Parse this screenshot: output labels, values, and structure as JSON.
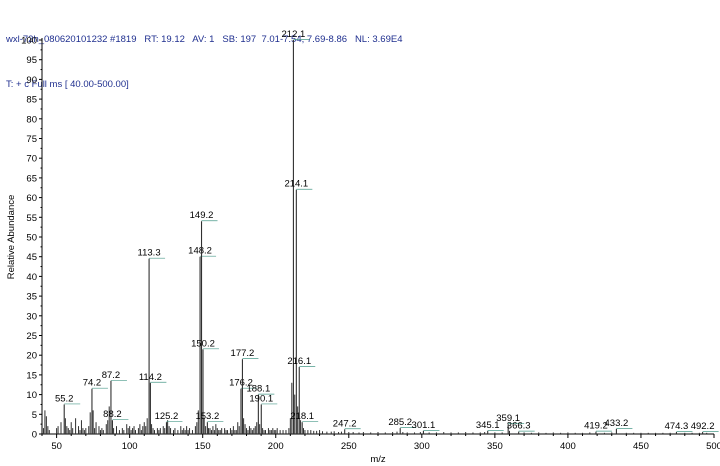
{
  "header": {
    "line1": "wxl-72h_080620101232 #1819   RT: 19.12   AV: 1   SB: 197  7.01-7.54, 7.69-8.86   NL: 3.69E4",
    "line2": "T: + c Full ms [ 40.00-500.00]"
  },
  "colors": {
    "axis": "#000000",
    "stick": "#303030",
    "label_leader": "#4a9a8a",
    "header_text": "#1f2f8f"
  },
  "chart_data": {
    "type": "bar",
    "xlabel": "m/z",
    "ylabel": "Relative Abundance",
    "xlim": [
      40,
      500
    ],
    "ylim": [
      0,
      100
    ],
    "xticks": [
      50,
      100,
      150,
      200,
      250,
      300,
      350,
      400,
      450,
      500
    ],
    "yticks": [
      0,
      5,
      10,
      15,
      20,
      25,
      30,
      35,
      40,
      45,
      50,
      55,
      60,
      65,
      70,
      75,
      80,
      85,
      90,
      95,
      100
    ],
    "labeled_peaks": [
      {
        "label": "55.2",
        "x": 55.2,
        "y": 7.5
      },
      {
        "label": "74.2",
        "x": 74.2,
        "y": 11.5
      },
      {
        "label": "87.2",
        "x": 87.2,
        "y": 13.5
      },
      {
        "label": "88.2",
        "x": 88.2,
        "y": 3.5
      },
      {
        "label": "113.3",
        "x": 113.3,
        "y": 44.5
      },
      {
        "label": "114.2",
        "x": 114.2,
        "y": 13
      },
      {
        "label": "125.2",
        "x": 125.2,
        "y": 3
      },
      {
        "label": "148.2",
        "x": 148.2,
        "y": 45
      },
      {
        "label": "149.2",
        "x": 149.2,
        "y": 54
      },
      {
        "label": "150.2",
        "x": 150.2,
        "y": 21.5
      },
      {
        "label": "153.2",
        "x": 153.2,
        "y": 3
      },
      {
        "label": "176.2",
        "x": 176.2,
        "y": 11.5
      },
      {
        "label": "177.2",
        "x": 177.2,
        "y": 19
      },
      {
        "label": "188.1",
        "x": 188.1,
        "y": 10
      },
      {
        "label": "190.1",
        "x": 190.1,
        "y": 7.5
      },
      {
        "label": "212.1",
        "x": 212.1,
        "y": 100
      },
      {
        "label": "214.1",
        "x": 214.1,
        "y": 62
      },
      {
        "label": "216.1",
        "x": 216.1,
        "y": 17
      },
      {
        "label": "218.1",
        "x": 218.1,
        "y": 3
      },
      {
        "label": "247.2",
        "x": 247.2,
        "y": 1.2
      },
      {
        "label": "285.2",
        "x": 285.2,
        "y": 1.5
      },
      {
        "label": "301.1",
        "x": 301.1,
        "y": 0.8
      },
      {
        "label": "345.1",
        "x": 345.1,
        "y": 0.8
      },
      {
        "label": "359.1",
        "x": 359.1,
        "y": 2.5
      },
      {
        "label": "366.3",
        "x": 366.3,
        "y": 0.6
      },
      {
        "label": "419.2",
        "x": 419.2,
        "y": 0.6
      },
      {
        "label": "433.2",
        "x": 433.2,
        "y": 1.3
      },
      {
        "label": "474.3",
        "x": 474.3,
        "y": 0.5
      },
      {
        "label": "492.2",
        "x": 492.2,
        "y": 0.5
      }
    ],
    "minor_peaks": [
      [
        41,
        1.5
      ],
      [
        42,
        6
      ],
      [
        43,
        4.5
      ],
      [
        44,
        2
      ],
      [
        45,
        1
      ],
      [
        50,
        1.5
      ],
      [
        51,
        2
      ],
      [
        53,
        3
      ],
      [
        56,
        4
      ],
      [
        57,
        2
      ],
      [
        58,
        1.5
      ],
      [
        59,
        1
      ],
      [
        60,
        3
      ],
      [
        61,
        1.5
      ],
      [
        63,
        4
      ],
      [
        65,
        2
      ],
      [
        66,
        1
      ],
      [
        67,
        3.5
      ],
      [
        68,
        1.5
      ],
      [
        69,
        1
      ],
      [
        70,
        1.5
      ],
      [
        72,
        2
      ],
      [
        73,
        5.5
      ],
      [
        75,
        6
      ],
      [
        76,
        1.5
      ],
      [
        77,
        3
      ],
      [
        79,
        2
      ],
      [
        80,
        1
      ],
      [
        81,
        1.5
      ],
      [
        82,
        1
      ],
      [
        84,
        2.5
      ],
      [
        85,
        3.5
      ],
      [
        86,
        7
      ],
      [
        89,
        1.5
      ],
      [
        91,
        2
      ],
      [
        93,
        1
      ],
      [
        95,
        1.5
      ],
      [
        96,
        1
      ],
      [
        98,
        2.5
      ],
      [
        99,
        1.5
      ],
      [
        100,
        2
      ],
      [
        101,
        1
      ],
      [
        102,
        1.5
      ],
      [
        103,
        2
      ],
      [
        104,
        1
      ],
      [
        106,
        1.5
      ],
      [
        107,
        2.5
      ],
      [
        108,
        1
      ],
      [
        109,
        2
      ],
      [
        110,
        3
      ],
      [
        111,
        2
      ],
      [
        112,
        4
      ],
      [
        115,
        2.5
      ],
      [
        116,
        1.5
      ],
      [
        117,
        1
      ],
      [
        119,
        1.5
      ],
      [
        120,
        1
      ],
      [
        121,
        1.5
      ],
      [
        123,
        2
      ],
      [
        124,
        1.5
      ],
      [
        126,
        3.5
      ],
      [
        127,
        2
      ],
      [
        128,
        1.5
      ],
      [
        130,
        1
      ],
      [
        131,
        1.5
      ],
      [
        133,
        1
      ],
      [
        135,
        2
      ],
      [
        136,
        1
      ],
      [
        137,
        1.5
      ],
      [
        138,
        1
      ],
      [
        139,
        2
      ],
      [
        140,
        1
      ],
      [
        141,
        1.5
      ],
      [
        143,
        1
      ],
      [
        145,
        2
      ],
      [
        146,
        3
      ],
      [
        147,
        6
      ],
      [
        151,
        4
      ],
      [
        152,
        2
      ],
      [
        154,
        1.5
      ],
      [
        155,
        1.5
      ],
      [
        156,
        1
      ],
      [
        157,
        2
      ],
      [
        158,
        1
      ],
      [
        159,
        2.5
      ],
      [
        160,
        1.5
      ],
      [
        161,
        1
      ],
      [
        162,
        1
      ],
      [
        163,
        1.5
      ],
      [
        165,
        1.5
      ],
      [
        166,
        1
      ],
      [
        167,
        1
      ],
      [
        169,
        1.5
      ],
      [
        170,
        1
      ],
      [
        171,
        2
      ],
      [
        172,
        1
      ],
      [
        173,
        1
      ],
      [
        174,
        3
      ],
      [
        175,
        2
      ],
      [
        178,
        4
      ],
      [
        179,
        2.5
      ],
      [
        180,
        1.5
      ],
      [
        181,
        1
      ],
      [
        182,
        2
      ],
      [
        183,
        1.5
      ],
      [
        184,
        1
      ],
      [
        185,
        1.5
      ],
      [
        186,
        2
      ],
      [
        187,
        3
      ],
      [
        189,
        2.5
      ],
      [
        191,
        1.5
      ],
      [
        192,
        1
      ],
      [
        193,
        1
      ],
      [
        195,
        1.5
      ],
      [
        196,
        1
      ],
      [
        197,
        1
      ],
      [
        198,
        1.5
      ],
      [
        199,
        1
      ],
      [
        200,
        1
      ],
      [
        201,
        1.5
      ],
      [
        203,
        1
      ],
      [
        205,
        1
      ],
      [
        207,
        1
      ],
      [
        209,
        1.5
      ],
      [
        210,
        4
      ],
      [
        211,
        13
      ],
      [
        213,
        10
      ],
      [
        215,
        7
      ],
      [
        217,
        3.5
      ],
      [
        219,
        1.5
      ],
      [
        220,
        1
      ],
      [
        222,
        1
      ],
      [
        224,
        1
      ],
      [
        226,
        0.8
      ],
      [
        228,
        0.8
      ],
      [
        230,
        1
      ],
      [
        232,
        0.7
      ],
      [
        235,
        0.6
      ],
      [
        238,
        0.6
      ],
      [
        240,
        0.7
      ],
      [
        243,
        0.5
      ],
      [
        245,
        0.6
      ],
      [
        250,
        0.5
      ],
      [
        253,
        0.5
      ],
      [
        257,
        0.4
      ],
      [
        260,
        0.5
      ],
      [
        265,
        0.4
      ],
      [
        270,
        0.5
      ],
      [
        275,
        0.4
      ],
      [
        280,
        0.5
      ],
      [
        283,
        0.6
      ],
      [
        287,
        0.5
      ],
      [
        290,
        0.4
      ],
      [
        295,
        0.4
      ],
      [
        299,
        0.5
      ],
      [
        305,
        0.4
      ],
      [
        310,
        0.4
      ],
      [
        315,
        0.5
      ],
      [
        320,
        0.4
      ],
      [
        325,
        0.4
      ],
      [
        330,
        0.5
      ],
      [
        335,
        0.4
      ],
      [
        340,
        0.4
      ],
      [
        343,
        0.5
      ],
      [
        350,
        0.4
      ],
      [
        355,
        0.4
      ],
      [
        360,
        0.8
      ],
      [
        370,
        0.4
      ],
      [
        375,
        0.3
      ],
      [
        380,
        0.4
      ],
      [
        385,
        0.3
      ],
      [
        390,
        0.4
      ],
      [
        395,
        0.3
      ],
      [
        400,
        0.4
      ],
      [
        405,
        0.3
      ],
      [
        410,
        0.3
      ],
      [
        415,
        0.4
      ],
      [
        425,
        0.3
      ],
      [
        430,
        0.4
      ],
      [
        440,
        0.3
      ],
      [
        445,
        0.3
      ],
      [
        450,
        0.3
      ],
      [
        455,
        0.3
      ],
      [
        460,
        0.3
      ],
      [
        465,
        0.3
      ],
      [
        470,
        0.3
      ],
      [
        480,
        0.3
      ],
      [
        485,
        0.3
      ],
      [
        490,
        0.3
      ],
      [
        495,
        0.3
      ]
    ]
  }
}
